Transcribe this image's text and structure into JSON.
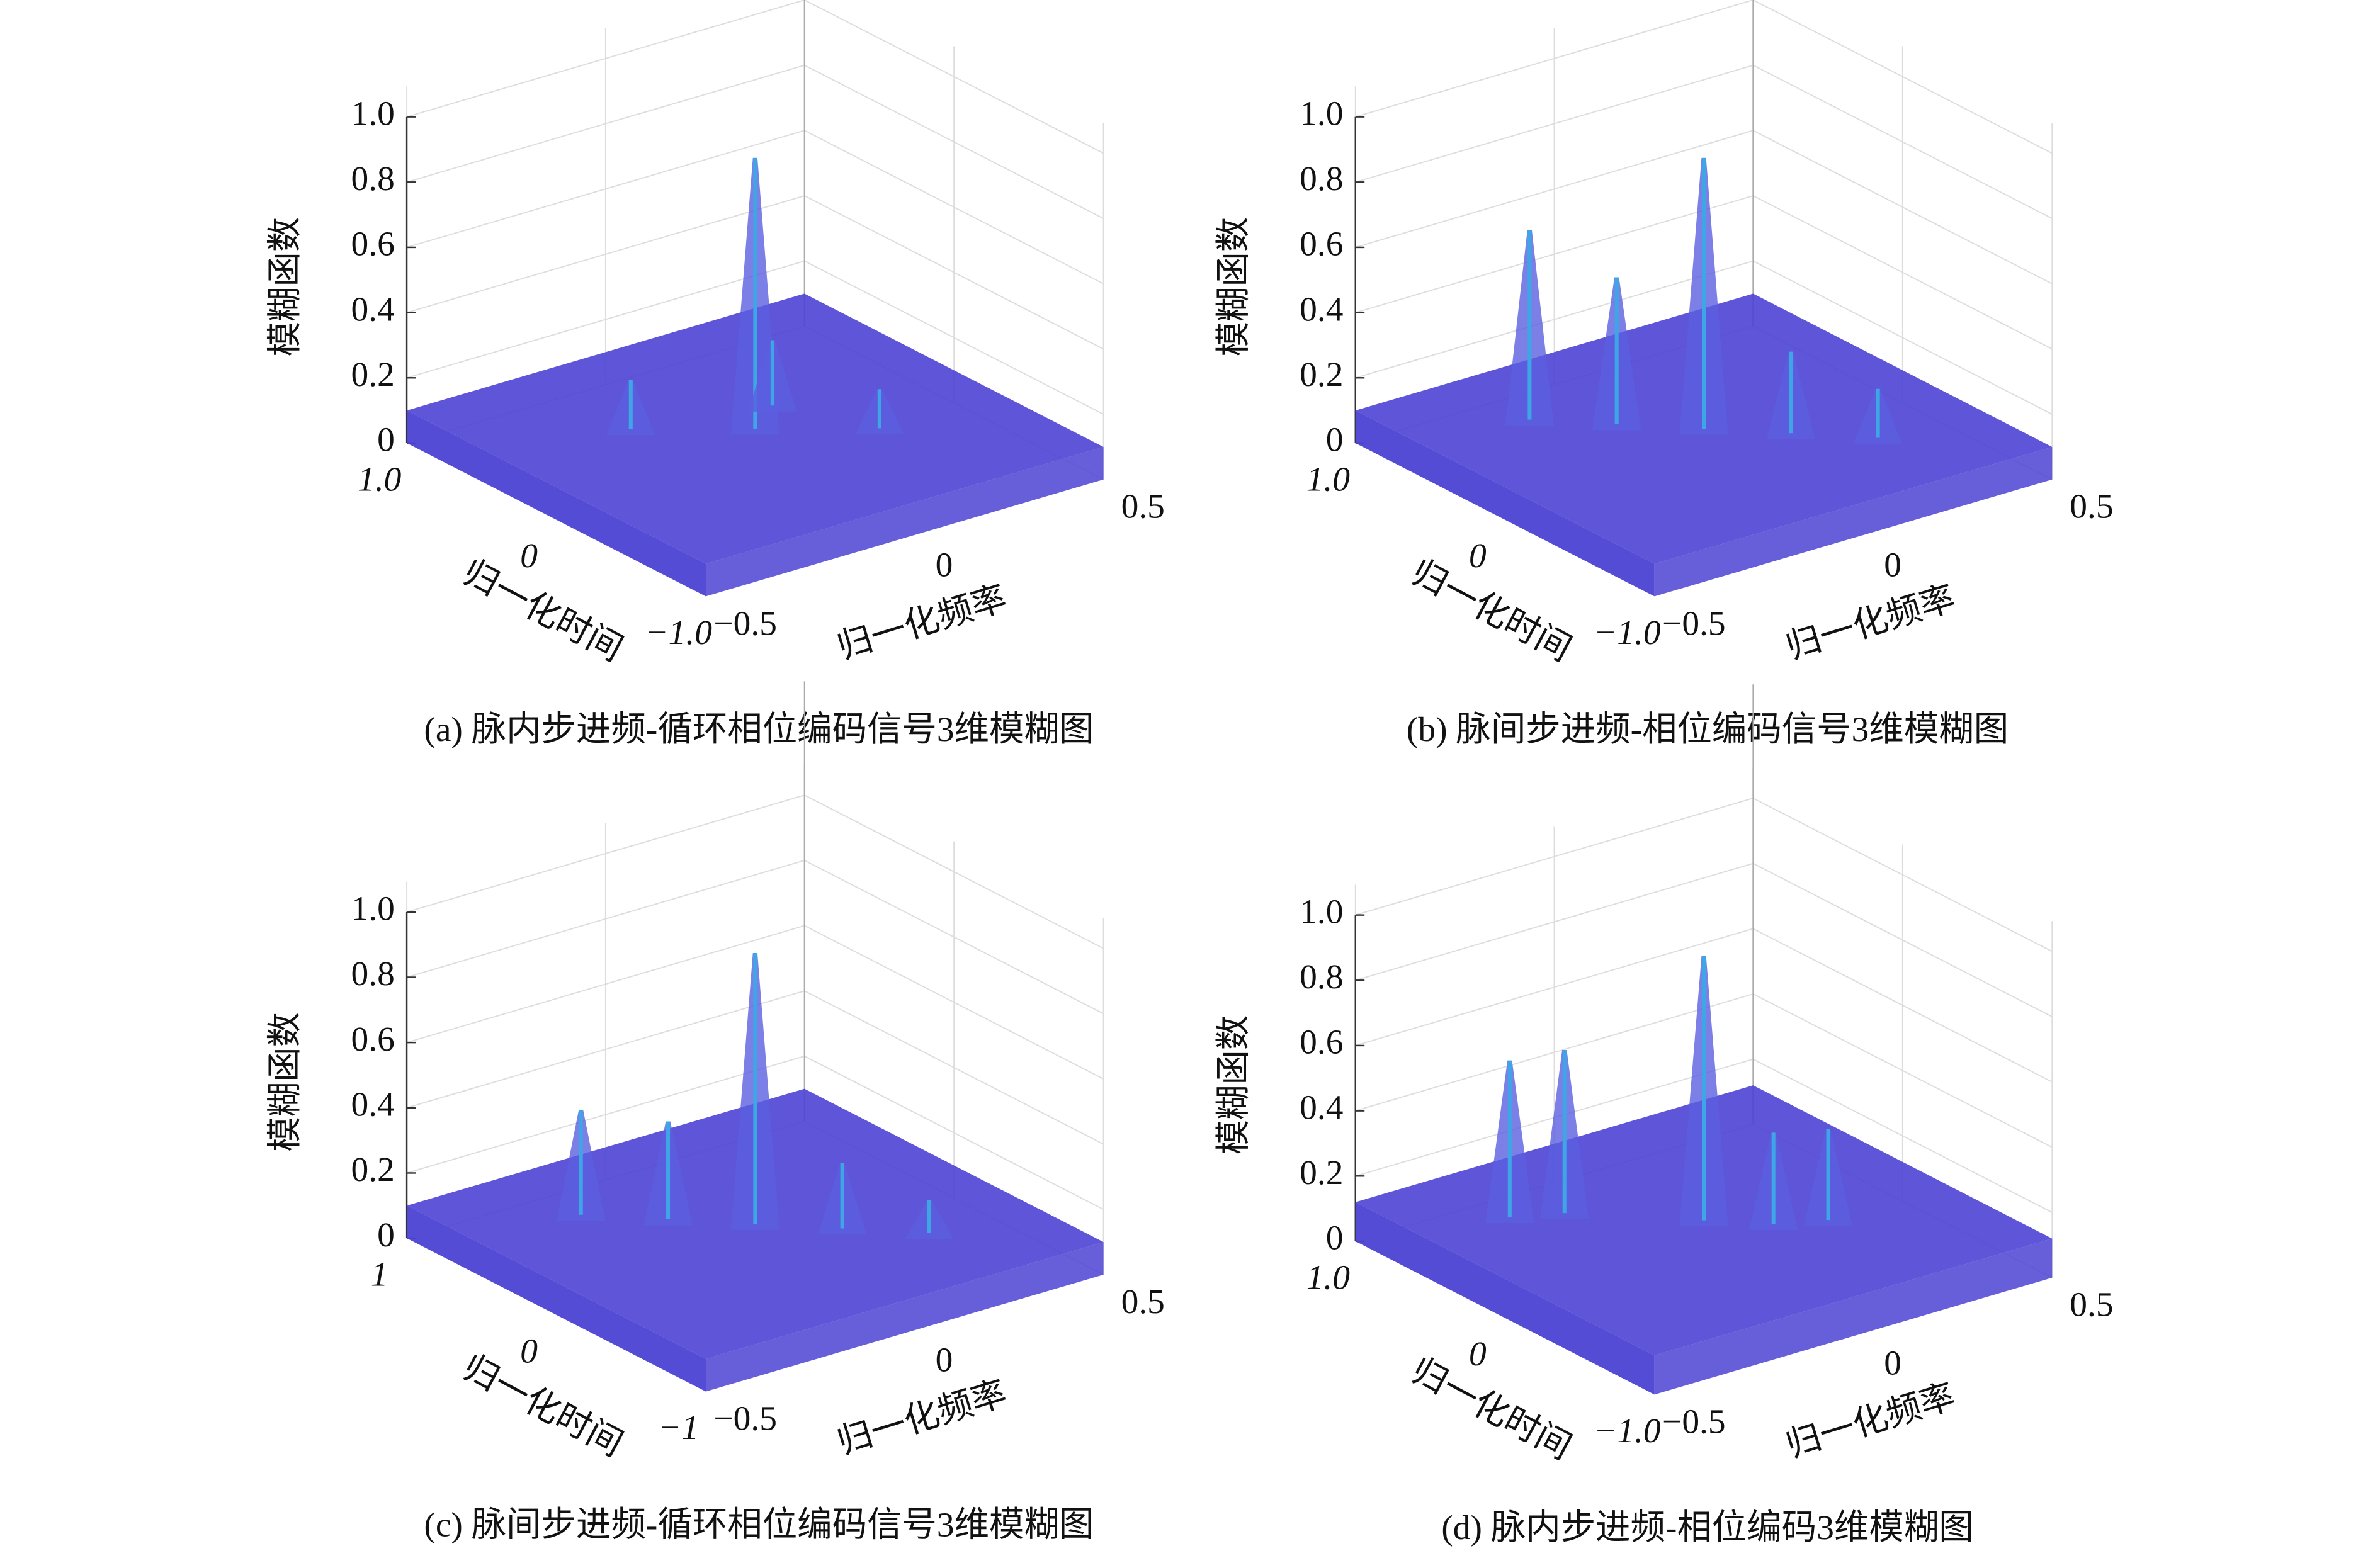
{
  "chart_data": [
    {
      "type": "surface3d",
      "caption": "(a) 脉内步进频-循环相位编码信号3维模糊图",
      "xlabel": "归一化时间",
      "ylabel": "归一化频率",
      "zlabel": "模糊函数",
      "xlim": [
        -1,
        1
      ],
      "xticks": [
        {
          "value": 1,
          "label": "1.0"
        },
        0,
        {
          "value": -1,
          "label": "−1.0"
        }
      ],
      "ylim": [
        -0.5,
        0.5
      ],
      "yticks": [
        {
          "value": -0.5,
          "label": "−0.5"
        },
        0,
        0.5
      ],
      "zlim": [
        0,
        1
      ],
      "zticks": [
        0,
        0.2,
        0.4,
        0.6,
        0.8,
        {
          "value": 1,
          "label": "1.0"
        }
      ],
      "color": "#4c42d4",
      "peak_color": "#3fa6e6",
      "floor_level": 0.1,
      "peaks": {
        "time": [
          0,
          0.3,
          -0.3,
          0.15
        ],
        "freq": [
          0,
          -0.2,
          0.2,
          0.1
        ],
        "values": [
          0.93,
          0.25,
          0.22,
          0.3
        ]
      }
    },
    {
      "type": "surface3d",
      "caption": "(b) 脉间步进频-相位编码信号3维模糊图",
      "xlabel": "归一化时间",
      "ylabel": "归一化频率",
      "zlabel": "模糊函数",
      "xlim": [
        -1,
        1
      ],
      "xticks": [
        {
          "value": 1,
          "label": "1.0"
        },
        0,
        {
          "value": -1,
          "label": "−1.0"
        }
      ],
      "ylim": [
        -0.5,
        0.5
      ],
      "yticks": [
        {
          "value": -0.5,
          "label": "−0.5"
        },
        0,
        0.5
      ],
      "zlim": [
        0,
        1
      ],
      "zticks": [
        0,
        0.2,
        0.4,
        0.6,
        0.8,
        {
          "value": 1,
          "label": "1.0"
        }
      ],
      "color": "#4c42d4",
      "peak_color": "#3fa6e6",
      "floor_level": 0.1,
      "peaks": {
        "time": [
          0.5,
          0.25,
          0,
          -0.25,
          -0.5
        ],
        "freq": [
          -0.25,
          -0.125,
          0,
          0.125,
          0.25
        ],
        "values": [
          0.68,
          0.55,
          0.93,
          0.35,
          0.25
        ]
      }
    },
    {
      "type": "surface3d",
      "caption": "(c) 脉间步进频-循环相位编码信号3维模糊图",
      "xlabel": "归一化时间",
      "ylabel": "归一化频率",
      "zlabel": "模糊函数",
      "xlim": [
        -1,
        1
      ],
      "xticks": [
        1,
        0,
        {
          "value": -1,
          "label": "−1"
        }
      ],
      "ylim": [
        -0.5,
        0.5
      ],
      "yticks": [
        {
          "value": -0.5,
          "label": "−0.5"
        },
        0,
        0.5
      ],
      "zlim": [
        0,
        1
      ],
      "zticks": [
        0,
        0.2,
        0.4,
        0.6,
        0.8,
        {
          "value": 1,
          "label": "1.0"
        }
      ],
      "color": "#4c42d4",
      "peak_color": "#3fa6e6",
      "floor_level": 0.1,
      "peaks": {
        "time": [
          0.5,
          0.25,
          0,
          -0.25,
          -0.5
        ],
        "freq": [
          -0.25,
          -0.125,
          0,
          0.125,
          0.25
        ],
        "values": [
          0.42,
          0.4,
          0.93,
          0.3,
          0.2
        ]
      }
    },
    {
      "type": "surface3d",
      "caption": "(d) 脉内步进频-相位编码3维模糊图",
      "xlabel": "归一化时间",
      "ylabel": "归一化频率",
      "zlabel": "模糊函数",
      "xlim": [
        -1,
        1
      ],
      "xticks": [
        {
          "value": 1,
          "label": "1.0"
        },
        0,
        {
          "value": -1,
          "label": "−1.0"
        }
      ],
      "ylim": [
        -0.5,
        0.5
      ],
      "yticks": [
        {
          "value": -0.5,
          "label": "−0.5"
        },
        0,
        0.5
      ],
      "zlim": [
        0,
        1
      ],
      "zticks": [
        0,
        0.2,
        0.4,
        0.6,
        0.8,
        {
          "value": 1,
          "label": "1.0"
        }
      ],
      "color": "#4c42d4",
      "peak_color": "#3fa6e6",
      "floor_level": 0.12,
      "peaks": {
        "time": [
          0.5,
          0.4,
          0,
          -0.2,
          -0.3
        ],
        "freq": [
          -0.3,
          -0.2,
          0,
          0.1,
          0.2
        ],
        "values": [
          0.6,
          0.62,
          0.93,
          0.4,
          0.4
        ]
      }
    }
  ]
}
